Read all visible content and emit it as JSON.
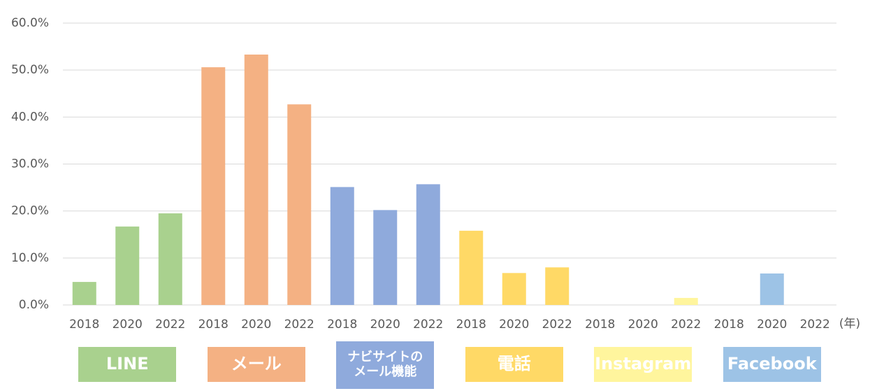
{
  "chart_data": {
    "type": "bar",
    "categories": [
      "2018",
      "2020",
      "2022"
    ],
    "x_unit": "(年)",
    "groups": [
      {
        "name": "LINE",
        "color": "#a9d18e",
        "values": [
          4.9,
          16.7,
          19.5
        ]
      },
      {
        "name": "メール",
        "color": "#f4b183",
        "values": [
          50.6,
          53.3,
          42.7
        ]
      },
      {
        "name": "ナビサイトの\nメール機能",
        "color": "#8faadc",
        "values": [
          25.1,
          20.2,
          25.7
        ]
      },
      {
        "name": "電話",
        "color": "#ffd966",
        "values": [
          15.8,
          6.8,
          8.0
        ]
      },
      {
        "name": "Instagram",
        "color": "#fff59d",
        "values": [
          0,
          0,
          1.5
        ]
      },
      {
        "name": "Facebook",
        "color": "#9dc3e6",
        "values": [
          0,
          6.7,
          0
        ]
      }
    ],
    "ylim": [
      0,
      60
    ],
    "yticks": [
      {
        "value": 0,
        "label": "0.0%"
      },
      {
        "value": 10,
        "label": "10.0%"
      },
      {
        "value": 20,
        "label": "20.0%"
      },
      {
        "value": 30,
        "label": "30.0%"
      },
      {
        "value": 40,
        "label": "40.0%"
      },
      {
        "value": 50,
        "label": "50.0%"
      },
      {
        "value": 60,
        "label": "60.0%"
      }
    ],
    "grid": true
  }
}
